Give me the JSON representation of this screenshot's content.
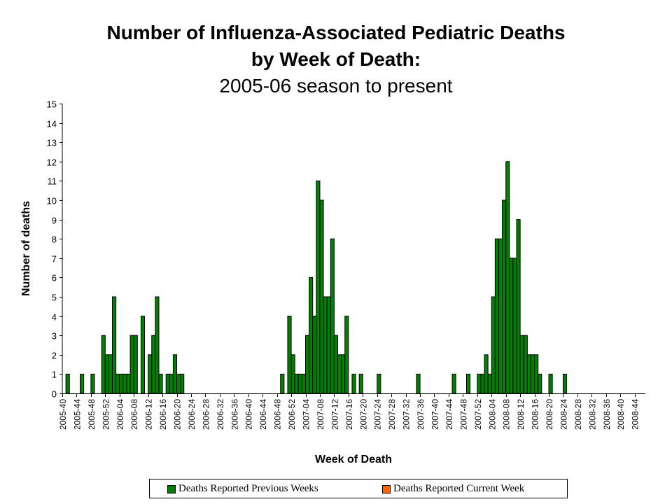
{
  "chart_data": {
    "type": "bar",
    "title": "Number of Influenza-Associated Pediatric Deaths",
    "title_line2": "by Week of Death:",
    "subtitle": "2005-06 season to present",
    "xlabel": "Week of Death",
    "ylabel": "Number of deaths",
    "ylim": [
      0,
      15
    ],
    "yticks": [
      0,
      1,
      2,
      3,
      4,
      5,
      6,
      7,
      8,
      9,
      10,
      11,
      12,
      13,
      14,
      15
    ],
    "grid": false,
    "legend_position": "bottom",
    "x_range": {
      "first_week": "2005-40",
      "last_week": "2008-46",
      "label_every": 4
    },
    "tick_labels": [
      "2005-40",
      "2005-44",
      "2005-48",
      "2005-52",
      "2006-04",
      "2006-08",
      "2006-12",
      "2006-16",
      "2006-20",
      "2006-24",
      "2006-28",
      "2006-32",
      "2006-36",
      "2006-40",
      "2006-44",
      "2006-48",
      "2006-52",
      "2007-04",
      "2007-08",
      "2007-12",
      "2007-16",
      "2007-20",
      "2007-24",
      "2007-28",
      "2007-32",
      "2007-36",
      "2007-40",
      "2007-44",
      "2007-48",
      "2007-52",
      "2008-04",
      "2008-08",
      "2008-12",
      "2008-16",
      "2008-20",
      "2008-24",
      "2008-28",
      "2008-32",
      "2008-36",
      "2008-40",
      "2008-44"
    ],
    "series": [
      {
        "name": "Deaths Reported Previous Weeks",
        "color": "#008000",
        "values": {
          "2005-41": 1,
          "2005-45": 1,
          "2005-48": 1,
          "2005-51": 3,
          "2005-52": 2,
          "2006-01": 2,
          "2006-02": 5,
          "2006-03": 1,
          "2006-04": 1,
          "2006-05": 1,
          "2006-06": 1,
          "2006-07": 3,
          "2006-08": 3,
          "2006-10": 4,
          "2006-12": 2,
          "2006-13": 3,
          "2006-14": 5,
          "2006-15": 1,
          "2006-17": 1,
          "2006-18": 1,
          "2006-19": 2,
          "2006-20": 1,
          "2006-21": 1,
          "2006-49": 1,
          "2006-51": 4,
          "2006-52": 2,
          "2007-01": 1,
          "2007-02": 1,
          "2007-03": 1,
          "2007-04": 3,
          "2007-05": 6,
          "2007-06": 4,
          "2007-07": 11,
          "2007-08": 10,
          "2007-09": 5,
          "2007-10": 5,
          "2007-11": 8,
          "2007-12": 3,
          "2007-13": 2,
          "2007-14": 2,
          "2007-15": 4,
          "2007-17": 1,
          "2007-19": 1,
          "2007-24": 1,
          "2007-35": 1,
          "2007-45": 1,
          "2007-49": 1,
          "2007-52": 1,
          "2008-01": 1,
          "2008-02": 2,
          "2008-03": 1,
          "2008-04": 5,
          "2008-05": 8,
          "2008-06": 8,
          "2008-07": 10,
          "2008-08": 12,
          "2008-09": 7,
          "2008-10": 7,
          "2008-11": 9,
          "2008-12": 3,
          "2008-13": 3,
          "2008-14": 2,
          "2008-15": 2,
          "2008-16": 2,
          "2008-17": 1,
          "2008-20": 1,
          "2008-24": 1
        }
      },
      {
        "name": "Deaths Reported Current Week",
        "color": "#FF6600",
        "values": {}
      }
    ]
  }
}
